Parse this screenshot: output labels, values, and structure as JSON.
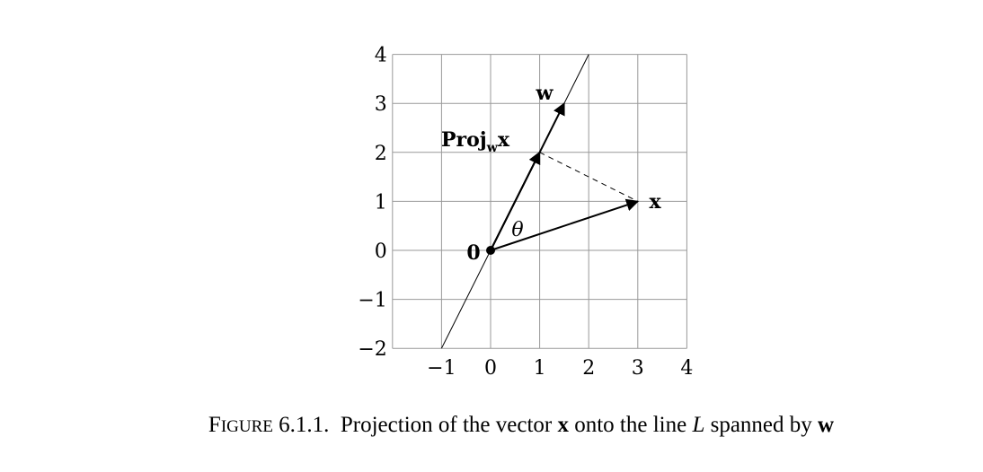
{
  "axes": {
    "x_ticks": [
      "−1",
      "0",
      "1",
      "2",
      "3",
      "4"
    ],
    "y_ticks": [
      "−2",
      "−1",
      "0",
      "1",
      "2",
      "3",
      "4"
    ],
    "x_values": [
      -1,
      0,
      1,
      2,
      3,
      4
    ],
    "y_values": [
      -2,
      -1,
      0,
      1,
      2,
      3,
      4
    ],
    "xlim": [
      -2,
      4
    ],
    "ylim": [
      -2,
      4
    ],
    "grid": true
  },
  "vectors": {
    "x": [
      3,
      1
    ],
    "w": [
      1.5,
      3
    ],
    "proj": [
      1,
      2
    ],
    "line_L_slope": 2
  },
  "labels": {
    "w": "w",
    "x": "x",
    "origin": "0",
    "proj_main": "Proj",
    "proj_sub": "w",
    "proj_tail": "x",
    "theta": "θ"
  },
  "caption": {
    "fig_first": "F",
    "fig_rest": "IGURE",
    "number": " 6.1.1.",
    "text1": "  Projection of the vector ",
    "bold_x": "x",
    "text2": " onto the line ",
    "ital_L": "L",
    "text3": " spanned by ",
    "bold_w": "w"
  }
}
